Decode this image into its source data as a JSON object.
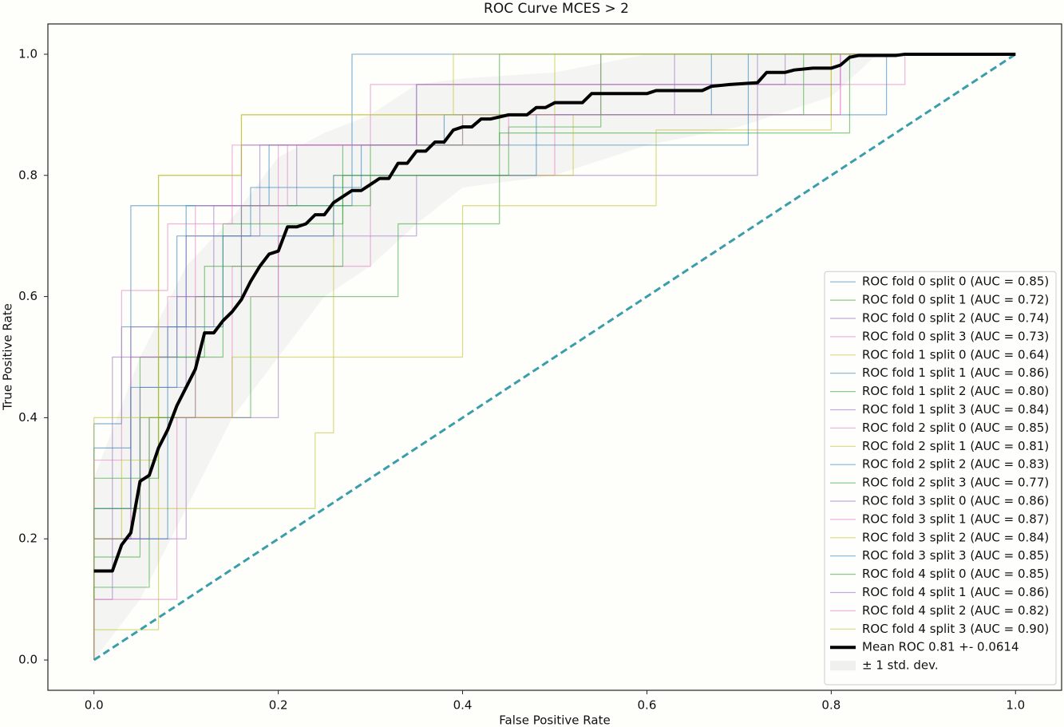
{
  "chart_data": {
    "type": "line",
    "title": "ROC Curve MCES > 2",
    "x_label": "False Positive Rate",
    "y_label": "True Positive Rate",
    "xlim": [
      -0.05,
      1.05
    ],
    "ylim": [
      -0.05,
      1.05
    ],
    "xticks": [
      {
        "value": 0,
        "label": "0.0"
      },
      0.2,
      0.4,
      0.6,
      0.8,
      {
        "value": 1,
        "label": "1.0"
      }
    ],
    "yticks": [
      {
        "value": 0,
        "label": "0.0"
      },
      0.2,
      0.4,
      0.6,
      0.8,
      {
        "value": 1,
        "label": "1.0"
      }
    ],
    "grid": false,
    "legend": "lower right",
    "fold_alpha": 0.55,
    "series": [
      {
        "name": "ROC fold 0 split 0 (AUC = 0.85)",
        "color": "#1f77b4",
        "x": [
          0,
          0,
          0.04,
          0.04,
          0.28,
          0.28,
          1
        ],
        "values": [
          0,
          0.35,
          0.35,
          0.75,
          0.75,
          1,
          1
        ]
      },
      {
        "name": "ROC fold 0 split 1 (AUC = 0.72)",
        "color": "#2ca02c",
        "x": [
          0,
          0,
          0.05,
          0.05,
          0.17,
          0.17,
          0.33,
          0.33,
          0.44,
          0.44,
          0.82,
          0.82,
          1
        ],
        "values": [
          0,
          0.17,
          0.17,
          0.4,
          0.4,
          0.6,
          0.6,
          0.72,
          0.72,
          0.87,
          0.87,
          1,
          1
        ]
      },
      {
        "name": "ROC fold 0 split 2 (AUC = 0.74)",
        "color": "#9467bd",
        "x": [
          0,
          0,
          0.1,
          0.1,
          0.2,
          0.2,
          0.35,
          0.35,
          0.72,
          0.72,
          1
        ],
        "values": [
          0,
          0.2,
          0.2,
          0.4,
          0.4,
          0.7,
          0.7,
          0.8,
          0.8,
          1,
          1
        ]
      },
      {
        "name": "ROC fold 0 split 3 (AUC = 0.73)",
        "color": "#e377c2",
        "x": [
          0,
          0,
          0.06,
          0.06,
          0.15,
          0.15,
          0.3,
          0.3,
          0.5,
          0.5,
          0.81,
          0.81,
          1
        ],
        "values": [
          0,
          0.2,
          0.2,
          0.4,
          0.4,
          0.65,
          0.65,
          0.8,
          0.8,
          0.9,
          0.9,
          1,
          1
        ]
      },
      {
        "name": "ROC fold 1 split 0 (AUC = 0.64)",
        "color": "#bcbd22",
        "x": [
          0,
          0,
          0.24,
          0.24,
          0.26,
          0.26,
          0.4,
          0.4,
          0.61,
          0.61,
          0.8,
          0.8,
          1
        ],
        "values": [
          0,
          0.25,
          0.25,
          0.375,
          0.375,
          0.5,
          0.5,
          0.75,
          0.75,
          0.875,
          0.875,
          1,
          1
        ]
      },
      {
        "name": "ROC fold 1 split 1 (AUC = 0.86)",
        "color": "#1f77b4",
        "x": [
          0,
          0,
          0.03,
          0.03,
          0.1,
          0.1,
          0.19,
          0.19,
          0.38,
          0.38,
          0.67,
          0.67,
          1
        ],
        "values": [
          0,
          0.39,
          0.39,
          0.55,
          0.55,
          0.75,
          0.75,
          0.85,
          0.85,
          0.9,
          0.9,
          1,
          1
        ]
      },
      {
        "name": "ROC fold 1 split 2 (AUC = 0.80)",
        "color": "#2ca02c",
        "x": [
          0,
          0,
          0.05,
          0.05,
          0.14,
          0.14,
          0.27,
          0.27,
          0.4,
          0.4,
          0.77,
          0.77,
          1
        ],
        "values": [
          0,
          0.25,
          0.25,
          0.5,
          0.5,
          0.72,
          0.72,
          0.85,
          0.85,
          0.9,
          0.9,
          1,
          1
        ]
      },
      {
        "name": "ROC fold 1 split 3 (AUC = 0.84)",
        "color": "#9467bd",
        "x": [
          0,
          0,
          0.04,
          0.04,
          0.13,
          0.13,
          0.22,
          0.22,
          0.35,
          0.35,
          0.63,
          0.63,
          1
        ],
        "values": [
          0,
          0.2,
          0.2,
          0.55,
          0.55,
          0.75,
          0.75,
          0.85,
          0.85,
          0.9,
          0.9,
          1,
          1
        ]
      },
      {
        "name": "ROC fold 2 split 0 (AUC = 0.85)",
        "color": "#e377c2",
        "x": [
          0,
          0,
          0.04,
          0.04,
          0.08,
          0.08,
          0.2,
          0.2,
          0.4,
          0.4,
          0.55,
          0.55,
          1
        ],
        "values": [
          0,
          0.2,
          0.2,
          0.5,
          0.5,
          0.6,
          0.6,
          0.85,
          0.85,
          0.9,
          0.9,
          1,
          1
        ]
      },
      {
        "name": "ROC fold 2 split 1 (AUC = 0.81)",
        "color": "#bcbd22",
        "x": [
          0,
          0,
          0.07,
          0.07,
          0.15,
          0.15,
          0.26,
          0.26,
          0.52,
          0.52,
          0.8,
          0.8,
          1
        ],
        "values": [
          0,
          0.05,
          0.05,
          0.4,
          0.4,
          0.5,
          0.5,
          0.8,
          0.8,
          0.9,
          0.9,
          1,
          1
        ]
      },
      {
        "name": "ROC fold 2 split 2 (AUC = 0.83)",
        "color": "#1f77b4",
        "x": [
          0,
          0,
          0.08,
          0.08,
          0.14,
          0.14,
          0.26,
          0.26,
          0.48,
          0.48,
          0.86,
          0.86,
          1
        ],
        "values": [
          0,
          0.2,
          0.2,
          0.55,
          0.55,
          0.7,
          0.7,
          0.8,
          0.8,
          0.9,
          0.9,
          1,
          1
        ]
      },
      {
        "name": "ROC fold 2 split 3 (AUC = 0.77)",
        "color": "#2ca02c",
        "x": [
          0,
          0,
          0.07,
          0.07,
          0.12,
          0.12,
          0.27,
          0.27,
          0.45,
          0.45,
          0.55,
          0.55,
          1
        ],
        "values": [
          0,
          0.3,
          0.3,
          0.5,
          0.5,
          0.65,
          0.65,
          0.8,
          0.8,
          0.88,
          0.88,
          1,
          1
        ]
      },
      {
        "name": "ROC fold 3 split 0 (AUC = 0.86)",
        "color": "#9467bd",
        "x": [
          0,
          0,
          0.05,
          0.05,
          0.1,
          0.1,
          0.18,
          0.18,
          0.35,
          0.35,
          0.75,
          0.75,
          1
        ],
        "values": [
          0,
          0.2,
          0.2,
          0.45,
          0.45,
          0.7,
          0.7,
          0.85,
          0.85,
          0.95,
          0.95,
          1,
          1
        ]
      },
      {
        "name": "ROC fold 3 split 1 (AUC = 0.87)",
        "color": "#e377c2",
        "x": [
          0,
          0,
          0.03,
          0.03,
          0.08,
          0.08,
          0.15,
          0.15,
          0.3,
          0.3,
          0.88,
          0.88,
          1
        ],
        "values": [
          0,
          0.33,
          0.33,
          0.61,
          0.61,
          0.72,
          0.72,
          0.85,
          0.85,
          0.95,
          0.95,
          1,
          1
        ]
      },
      {
        "name": "ROC fold 3 split 2 (AUC = 0.84)",
        "color": "#bcbd22",
        "x": [
          0,
          0,
          0.03,
          0.03,
          0.07,
          0.07,
          0.16,
          0.16,
          0.5,
          0.5,
          1
        ],
        "values": [
          0,
          0.2,
          0.2,
          0.33,
          0.33,
          0.8,
          0.8,
          0.9,
          0.9,
          1,
          1
        ]
      },
      {
        "name": "ROC fold 3 split 3 (AUC = 0.85)",
        "color": "#1f77b4",
        "x": [
          0,
          0,
          0.04,
          0.04,
          0.09,
          0.09,
          0.17,
          0.17,
          0.29,
          0.29,
          0.71,
          0.71,
          1
        ],
        "values": [
          0,
          0.25,
          0.25,
          0.45,
          0.45,
          0.7,
          0.7,
          0.78,
          0.78,
          0.85,
          0.85,
          1,
          1
        ]
      },
      {
        "name": "ROC fold 4 split 0 (AUC = 0.85)",
        "color": "#2ca02c",
        "x": [
          0,
          0,
          0.06,
          0.06,
          0.11,
          0.11,
          0.16,
          0.16,
          0.3,
          0.3,
          0.44,
          0.44,
          1
        ],
        "values": [
          0,
          0.12,
          0.12,
          0.4,
          0.4,
          0.6,
          0.6,
          0.75,
          0.75,
          0.85,
          0.85,
          1,
          1
        ]
      },
      {
        "name": "ROC fold 4 split 1 (AUC = 0.86)",
        "color": "#9467bd",
        "x": [
          0,
          0,
          0.02,
          0.02,
          0.09,
          0.09,
          0.16,
          0.16,
          0.35,
          0.35,
          0.81,
          0.81,
          1
        ],
        "values": [
          0,
          0.1,
          0.1,
          0.5,
          0.5,
          0.6,
          0.6,
          0.85,
          0.85,
          0.95,
          0.95,
          1,
          1
        ]
      },
      {
        "name": "ROC fold 4 split 2 (AUC = 0.82)",
        "color": "#e377c2",
        "x": [
          0,
          0,
          0.09,
          0.09,
          0.11,
          0.11,
          0.21,
          0.21,
          0.45,
          0.45,
          0.81,
          0.81,
          1
        ],
        "values": [
          0,
          0.1,
          0.1,
          0.4,
          0.4,
          0.75,
          0.75,
          0.85,
          0.85,
          0.9,
          0.9,
          1,
          1
        ]
      },
      {
        "name": "ROC fold 4 split 3 (AUC = 0.90)",
        "color": "#bcbd22",
        "x": [
          0,
          0,
          0.07,
          0.07,
          0.16,
          0.16,
          0.39,
          0.39,
          1
        ],
        "values": [
          0,
          0.4,
          0.4,
          0.8,
          0.8,
          0.9,
          0.9,
          1,
          1
        ]
      },
      {
        "name": "Mean ROC 0.81 +- 0.0614",
        "color": "#000000",
        "mean": true,
        "x": [
          0,
          0.02,
          0.03,
          0.04,
          0.05,
          0.06,
          0.07,
          0.08,
          0.09,
          0.1,
          0.11,
          0.12,
          0.13,
          0.14,
          0.15,
          0.16,
          0.17,
          0.18,
          0.19,
          0.2,
          0.21,
          0.22,
          0.23,
          0.24,
          0.25,
          0.26,
          0.28,
          0.29,
          0.3,
          0.31,
          0.32,
          0.33,
          0.34,
          0.35,
          0.36,
          0.37,
          0.38,
          0.39,
          0.4,
          0.41,
          0.42,
          0.43,
          0.45,
          0.47,
          0.48,
          0.49,
          0.5,
          0.53,
          0.54,
          0.6,
          0.61,
          0.66,
          0.67,
          0.69,
          0.72,
          0.73,
          0.75,
          0.76,
          0.78,
          0.8,
          0.81,
          0.82,
          0.83,
          0.87,
          0.88,
          1
        ],
        "values": [
          0.147,
          0.147,
          0.19,
          0.21,
          0.295,
          0.305,
          0.35,
          0.38,
          0.42,
          0.45,
          0.48,
          0.54,
          0.54,
          0.56,
          0.575,
          0.595,
          0.625,
          0.65,
          0.67,
          0.675,
          0.715,
          0.715,
          0.72,
          0.735,
          0.735,
          0.755,
          0.775,
          0.775,
          0.785,
          0.795,
          0.795,
          0.82,
          0.82,
          0.84,
          0.84,
          0.855,
          0.855,
          0.875,
          0.88,
          0.88,
          0.893,
          0.893,
          0.9,
          0.9,
          0.912,
          0.912,
          0.92,
          0.92,
          0.935,
          0.935,
          0.94,
          0.94,
          0.947,
          0.95,
          0.953,
          0.97,
          0.97,
          0.974,
          0.977,
          0.977,
          0.982,
          0.995,
          0.998,
          0.998,
          1,
          1
        ]
      }
    ],
    "band": {
      "name": "± 1 std. dev.",
      "color": "#dddddd",
      "x": [
        0,
        0.05,
        0.1,
        0.15,
        0.2,
        0.25,
        0.3,
        0.35,
        0.4,
        0.5,
        0.6,
        0.7,
        0.8,
        0.85,
        1
      ],
      "lower": [
        0,
        0.1,
        0.25,
        0.4,
        0.5,
        0.6,
        0.65,
        0.72,
        0.78,
        0.8,
        0.85,
        0.88,
        0.93,
        1,
        1
      ],
      "upper": [
        0.3,
        0.5,
        0.65,
        0.73,
        0.83,
        0.87,
        0.9,
        0.95,
        0.96,
        0.97,
        1,
        1,
        1,
        1,
        1
      ]
    },
    "chance_line": {
      "x": [
        0,
        1
      ],
      "values": [
        0,
        1
      ],
      "color": "#3a9daa"
    }
  }
}
